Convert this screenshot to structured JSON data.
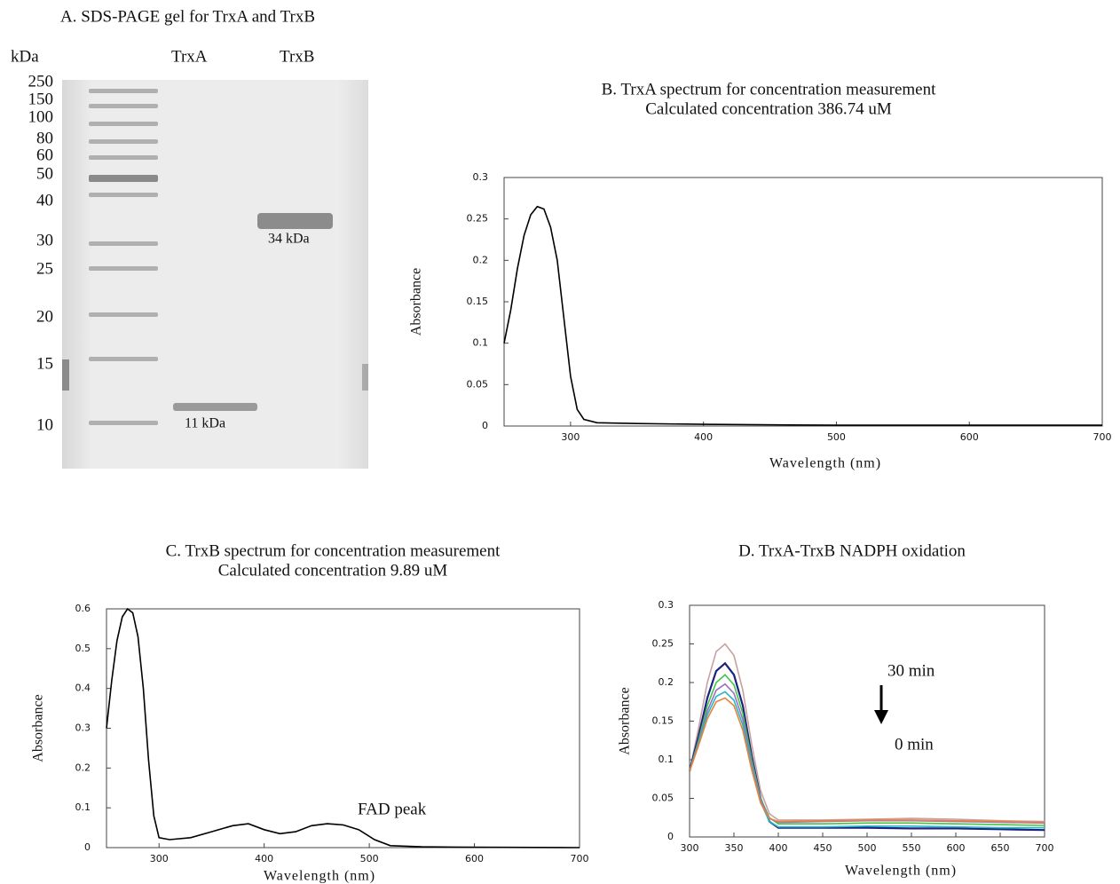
{
  "gel": {
    "title": "A. SDS-PAGE gel for TrxA and TrxB",
    "unit": "kDa",
    "lanes": [
      "TrxA",
      "TrxB"
    ],
    "markers": [
      250,
      150,
      100,
      80,
      60,
      50,
      40,
      30,
      25,
      20,
      15,
      10
    ],
    "bands": [
      "11 kDa",
      "34 kDa"
    ]
  },
  "chart_data": [
    {
      "type": "line",
      "title": "B. TrxA spectrum for concentration measurement",
      "subtitle": "Calculated concentration 386.74 uM",
      "x_label": "Wavelength (nm)",
      "y_label": "Absorbance",
      "x": [
        250,
        255,
        260,
        265,
        270,
        275,
        280,
        285,
        290,
        295,
        300,
        305,
        310,
        320,
        350,
        400,
        500,
        600,
        700
      ],
      "series": [
        {
          "color": "#000000",
          "values": [
            0.1,
            0.14,
            0.19,
            0.23,
            0.255,
            0.265,
            0.262,
            0.24,
            0.2,
            0.13,
            0.06,
            0.02,
            0.008,
            0.004,
            0.003,
            0.002,
            0.001,
            0.001,
            0.001
          ]
        }
      ],
      "xlim": [
        250,
        700
      ],
      "xticks": [
        300,
        400,
        500,
        600,
        700
      ],
      "ylim": [
        0,
        0.3
      ],
      "yticks": [
        0,
        0.05,
        0.1,
        0.15,
        0.2,
        0.25,
        0.3
      ]
    },
    {
      "type": "line",
      "title": "C. TrxB spectrum for concentration measurement",
      "subtitle": "Calculated concentration 9.89 uM",
      "x_label": "Wavelength (nm)",
      "y_label": "Absorbance",
      "annotations": [
        "FAD peak"
      ],
      "x": [
        250,
        255,
        260,
        265,
        270,
        275,
        280,
        285,
        290,
        295,
        300,
        310,
        330,
        350,
        370,
        385,
        400,
        415,
        430,
        445,
        460,
        475,
        490,
        505,
        520,
        550,
        600,
        700
      ],
      "series": [
        {
          "color": "#000000",
          "values": [
            0.3,
            0.42,
            0.52,
            0.58,
            0.6,
            0.59,
            0.53,
            0.4,
            0.22,
            0.08,
            0.025,
            0.02,
            0.025,
            0.04,
            0.055,
            0.06,
            0.045,
            0.035,
            0.04,
            0.055,
            0.06,
            0.057,
            0.045,
            0.02,
            0.005,
            0.002,
            0.001,
            0
          ]
        }
      ],
      "xlim": [
        250,
        700
      ],
      "xticks": [
        300,
        400,
        500,
        600,
        700
      ],
      "ylim": [
        0,
        0.6
      ],
      "yticks": [
        0,
        0.1,
        0.2,
        0.3,
        0.4,
        0.5,
        0.6
      ]
    },
    {
      "type": "line",
      "title": "D. TrxA-TrxB NADPH oxidation",
      "x_label": "Wavelength (nm)",
      "y_label": "Absorbance",
      "annotations": [
        "30 min",
        "0 min"
      ],
      "x": [
        300,
        310,
        320,
        330,
        340,
        350,
        360,
        370,
        380,
        390,
        400,
        450,
        500,
        550,
        600,
        650,
        700
      ],
      "series": [
        {
          "color": "#c9a0a0",
          "values": [
            0.085,
            0.14,
            0.2,
            0.24,
            0.25,
            0.235,
            0.19,
            0.12,
            0.06,
            0.03,
            0.022,
            0.022,
            0.023,
            0.024,
            0.023,
            0.021,
            0.02
          ]
        },
        {
          "color": "#1a237e",
          "values": [
            0.085,
            0.13,
            0.18,
            0.215,
            0.225,
            0.21,
            0.17,
            0.105,
            0.05,
            0.02,
            0.012,
            0.012,
            0.012,
            0.011,
            0.011,
            0.01,
            0.009
          ]
        },
        {
          "color": "#43c443",
          "values": [
            0.085,
            0.125,
            0.17,
            0.2,
            0.21,
            0.197,
            0.16,
            0.1,
            0.05,
            0.025,
            0.017,
            0.017,
            0.018,
            0.018,
            0.017,
            0.016,
            0.015
          ]
        },
        {
          "color": "#9b6fc7",
          "values": [
            0.085,
            0.122,
            0.163,
            0.19,
            0.198,
            0.186,
            0.152,
            0.095,
            0.048,
            0.024,
            0.019,
            0.02,
            0.021,
            0.021,
            0.02,
            0.019,
            0.018
          ]
        },
        {
          "color": "#29b6c6",
          "values": [
            0.085,
            0.12,
            0.158,
            0.182,
            0.188,
            0.177,
            0.145,
            0.09,
            0.045,
            0.02,
            0.013,
            0.013,
            0.014,
            0.014,
            0.013,
            0.012,
            0.012
          ]
        },
        {
          "color": "#e8823a",
          "values": [
            0.085,
            0.118,
            0.153,
            0.175,
            0.18,
            0.17,
            0.138,
            0.087,
            0.044,
            0.024,
            0.02,
            0.021,
            0.022,
            0.022,
            0.021,
            0.02,
            0.019
          ]
        }
      ],
      "xlim": [
        300,
        700
      ],
      "xticks": [
        300,
        350,
        400,
        450,
        500,
        550,
        600,
        650,
        700
      ],
      "ylim": [
        0,
        0.3
      ],
      "yticks": [
        0,
        0.05,
        0.1,
        0.15,
        0.2,
        0.25,
        0.3
      ]
    }
  ]
}
